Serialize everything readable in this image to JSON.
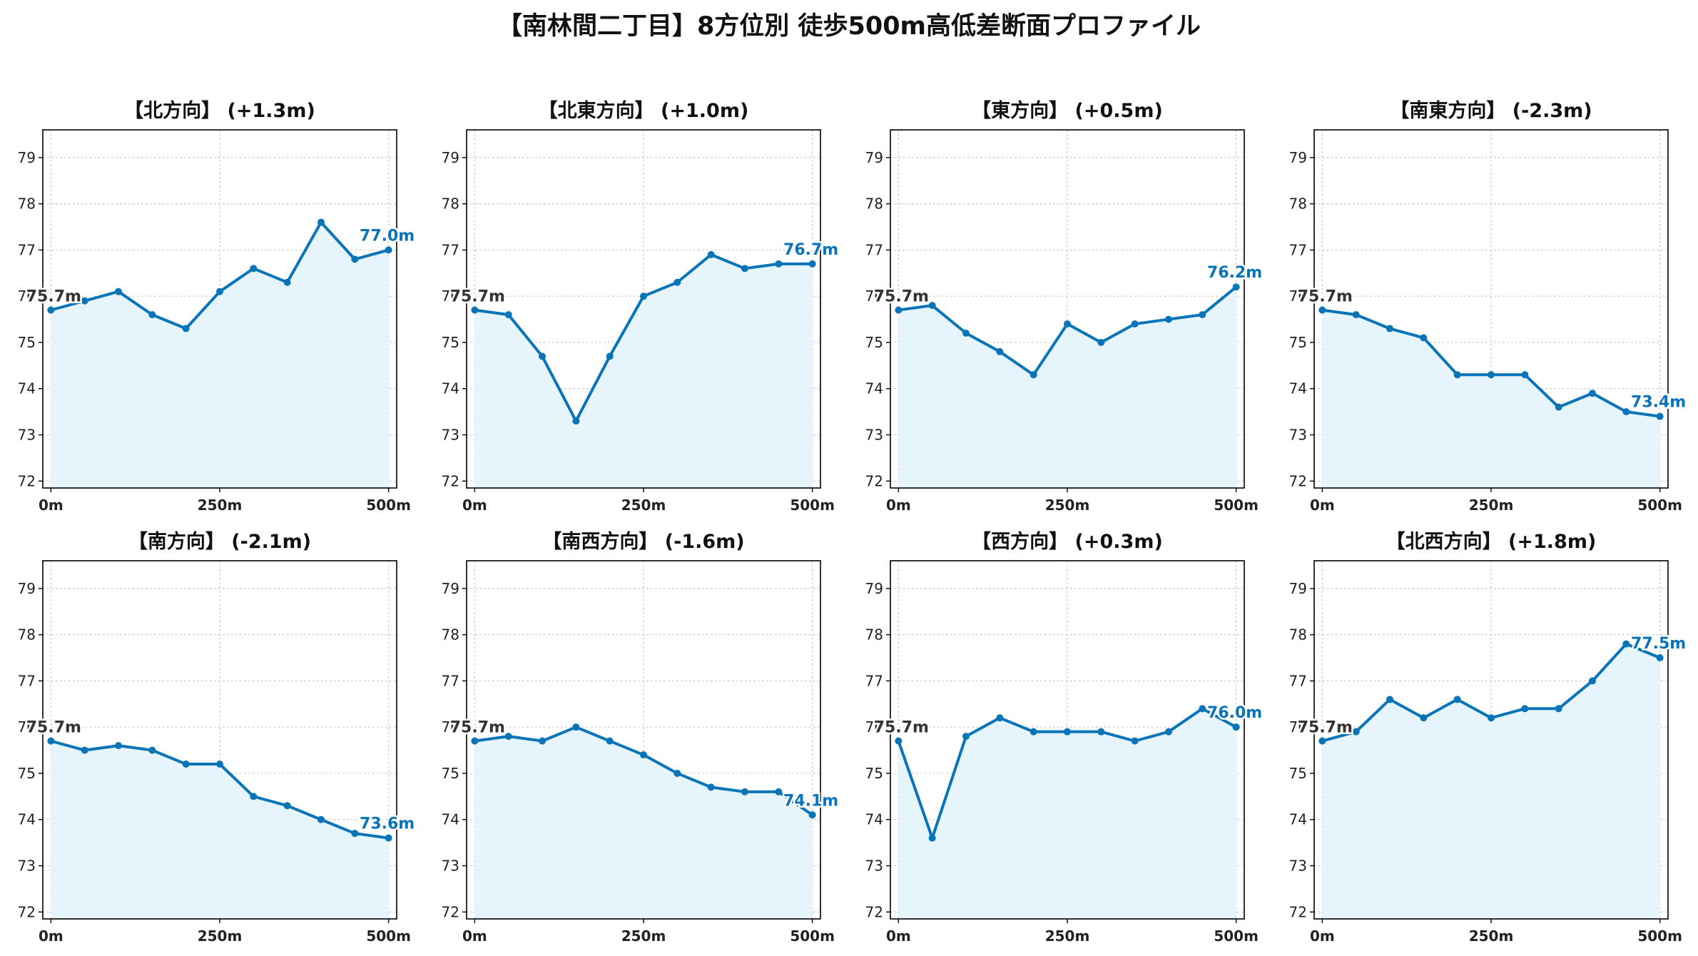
{
  "title": "【南林間二丁目】8方位別 徒歩500m高低差断面プロファイル",
  "colors": {
    "line": "#0a74b8",
    "fill": "#e5f5fb",
    "grid": "#c4c4c4",
    "axis": "#000000",
    "start_label": "#333333",
    "end_label": "#0a74b8"
  },
  "chart_data": [
    {
      "type": "area",
      "title": "【北方向】 (+1.3m)",
      "x": [
        0,
        50,
        100,
        150,
        200,
        250,
        300,
        350,
        400,
        450,
        500
      ],
      "values": [
        75.7,
        75.9,
        76.1,
        75.6,
        75.3,
        76.1,
        76.6,
        76.3,
        77.6,
        76.8,
        77.0
      ],
      "xticks": [
        "0m",
        "250m",
        "500m"
      ],
      "yticks": [
        72,
        73,
        74,
        75,
        76,
        77,
        78,
        79
      ],
      "ylim": [
        71.85,
        79.6
      ],
      "xlim": [
        -12,
        512
      ],
      "grid": true,
      "start_label": "75.7m",
      "end_label": "77.0m"
    },
    {
      "type": "area",
      "title": "【北東方向】 (+1.0m)",
      "x": [
        0,
        50,
        100,
        150,
        200,
        250,
        300,
        350,
        400,
        450,
        500
      ],
      "values": [
        75.7,
        75.6,
        74.7,
        73.3,
        74.7,
        76.0,
        76.3,
        76.9,
        76.6,
        76.7,
        76.7
      ],
      "xticks": [
        "0m",
        "250m",
        "500m"
      ],
      "yticks": [
        72,
        73,
        74,
        75,
        76,
        77,
        78,
        79
      ],
      "ylim": [
        71.85,
        79.6
      ],
      "xlim": [
        -12,
        512
      ],
      "grid": true,
      "start_label": "75.7m",
      "end_label": "76.7m"
    },
    {
      "type": "area",
      "title": "【東方向】 (+0.5m)",
      "x": [
        0,
        50,
        100,
        150,
        200,
        250,
        300,
        350,
        400,
        450,
        500
      ],
      "values": [
        75.7,
        75.8,
        75.2,
        74.8,
        74.3,
        75.4,
        75.0,
        75.4,
        75.5,
        75.6,
        76.2
      ],
      "xticks": [
        "0m",
        "250m",
        "500m"
      ],
      "yticks": [
        72,
        73,
        74,
        75,
        76,
        77,
        78,
        79
      ],
      "ylim": [
        71.85,
        79.6
      ],
      "xlim": [
        -12,
        512
      ],
      "grid": true,
      "start_label": "75.7m",
      "end_label": "76.2m"
    },
    {
      "type": "area",
      "title": "【南東方向】 (-2.3m)",
      "x": [
        0,
        50,
        100,
        150,
        200,
        250,
        300,
        350,
        400,
        450,
        500
      ],
      "values": [
        75.7,
        75.6,
        75.3,
        75.1,
        74.3,
        74.3,
        74.3,
        73.6,
        73.9,
        73.5,
        73.4
      ],
      "xticks": [
        "0m",
        "250m",
        "500m"
      ],
      "yticks": [
        72,
        73,
        74,
        75,
        76,
        77,
        78,
        79
      ],
      "ylim": [
        71.85,
        79.6
      ],
      "xlim": [
        -12,
        512
      ],
      "grid": true,
      "start_label": "75.7m",
      "end_label": "73.4m"
    },
    {
      "type": "area",
      "title": "【南方向】 (-2.1m)",
      "x": [
        0,
        50,
        100,
        150,
        200,
        250,
        300,
        350,
        400,
        450,
        500
      ],
      "values": [
        75.7,
        75.5,
        75.6,
        75.5,
        75.2,
        75.2,
        74.5,
        74.3,
        74.0,
        73.7,
        73.6
      ],
      "xticks": [
        "0m",
        "250m",
        "500m"
      ],
      "yticks": [
        72,
        73,
        74,
        75,
        76,
        77,
        78,
        79
      ],
      "ylim": [
        71.85,
        79.6
      ],
      "xlim": [
        -12,
        512
      ],
      "grid": true,
      "start_label": "75.7m",
      "end_label": "73.6m"
    },
    {
      "type": "area",
      "title": "【南西方向】 (-1.6m)",
      "x": [
        0,
        50,
        100,
        150,
        200,
        250,
        300,
        350,
        400,
        450,
        500
      ],
      "values": [
        75.7,
        75.8,
        75.7,
        76.0,
        75.7,
        75.4,
        75.0,
        74.7,
        74.6,
        74.6,
        74.1
      ],
      "xticks": [
        "0m",
        "250m",
        "500m"
      ],
      "yticks": [
        72,
        73,
        74,
        75,
        76,
        77,
        78,
        79
      ],
      "ylim": [
        71.85,
        79.6
      ],
      "xlim": [
        -12,
        512
      ],
      "grid": true,
      "start_label": "75.7m",
      "end_label": "74.1m"
    },
    {
      "type": "area",
      "title": "【西方向】 (+0.3m)",
      "x": [
        0,
        50,
        100,
        150,
        200,
        250,
        300,
        350,
        400,
        450,
        500
      ],
      "values": [
        75.7,
        73.6,
        75.8,
        76.2,
        75.9,
        75.9,
        75.9,
        75.7,
        75.9,
        76.4,
        76.0
      ],
      "xticks": [
        "0m",
        "250m",
        "500m"
      ],
      "yticks": [
        72,
        73,
        74,
        75,
        76,
        77,
        78,
        79
      ],
      "ylim": [
        71.85,
        79.6
      ],
      "xlim": [
        -12,
        512
      ],
      "grid": true,
      "start_label": "75.7m",
      "end_label": "76.0m"
    },
    {
      "type": "area",
      "title": "【北西方向】 (+1.8m)",
      "x": [
        0,
        50,
        100,
        150,
        200,
        250,
        300,
        350,
        400,
        450,
        500
      ],
      "values": [
        75.7,
        75.9,
        76.6,
        76.2,
        76.6,
        76.2,
        76.4,
        76.4,
        77.0,
        77.8,
        77.5
      ],
      "xticks": [
        "0m",
        "250m",
        "500m"
      ],
      "yticks": [
        72,
        73,
        74,
        75,
        76,
        77,
        78,
        79
      ],
      "ylim": [
        71.85,
        79.6
      ],
      "xlim": [
        -12,
        512
      ],
      "grid": true,
      "start_label": "75.7m",
      "end_label": "77.5m"
    }
  ]
}
